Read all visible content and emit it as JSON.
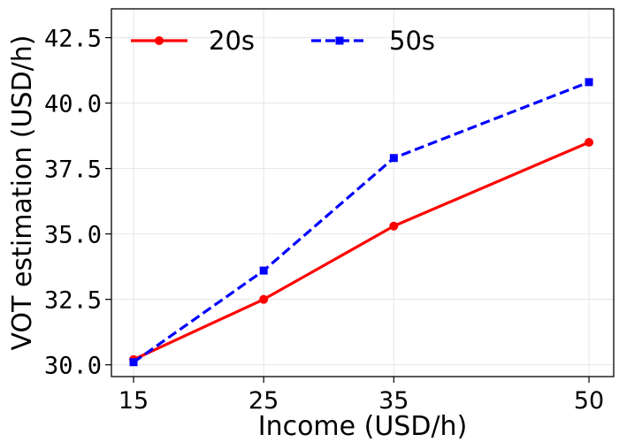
{
  "chart_data": {
    "type": "line",
    "xlabel": "Income (USD/h)",
    "ylabel": "VOT estimation (USD/h)",
    "x": [
      15,
      25,
      35,
      50
    ],
    "xticks": [
      "15",
      "25",
      "35",
      "50"
    ],
    "yticks": [
      "30.0",
      "32.5",
      "35.0",
      "37.5",
      "40.0",
      "42.5"
    ],
    "ytick_values": [
      30.0,
      32.5,
      35.0,
      37.5,
      40.0,
      42.5
    ],
    "xlim": [
      13.3,
      51.9
    ],
    "ylim": [
      29.55,
      43.6
    ],
    "grid": true,
    "legend_position": "top-left",
    "series": [
      {
        "name": "20s",
        "values": [
          30.2,
          32.5,
          35.3,
          38.5
        ],
        "color": "#ff0000",
        "linestyle": "solid",
        "marker": "circle"
      },
      {
        "name": "50s",
        "values": [
          30.1,
          33.6,
          37.9,
          40.8
        ],
        "color": "#0000ff",
        "linestyle": "dashed",
        "marker": "square"
      }
    ]
  }
}
